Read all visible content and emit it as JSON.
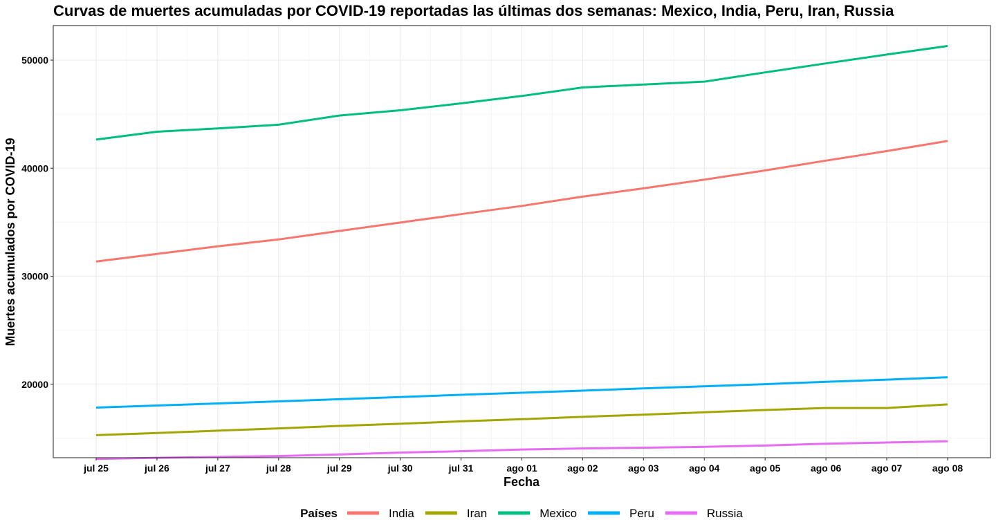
{
  "chart_data": {
    "type": "line",
    "title": "Curvas de muertes acumuladas por COVID-19 reportadas las últimas dos semanas: Mexico, India, Peru, Iran, Russia",
    "xlabel": "Fecha",
    "ylabel": "Muertes acumulados por COVID-19",
    "categories": [
      "jul 25",
      "jul 26",
      "jul 27",
      "jul 28",
      "jul 29",
      "jul 30",
      "jul 31",
      "ago 01",
      "ago 02",
      "ago 03",
      "ago 04",
      "ago 05",
      "ago 06",
      "ago 07",
      "ago 08"
    ],
    "yticks": [
      20000,
      30000,
      40000,
      50000
    ],
    "ylim": [
      13200,
      53200
    ],
    "grid": true,
    "legend": {
      "title": "Países",
      "position": "bottom"
    },
    "series": [
      {
        "name": "India",
        "color": "#F8766D",
        "values": [
          31358,
          32063,
          32771,
          33408,
          34193,
          34968,
          35747,
          36511,
          37364,
          38135,
          38938,
          39795,
          40699,
          41585,
          42518
        ]
      },
      {
        "name": "Iran",
        "color": "#A3A500",
        "values": [
          15289,
          15484,
          15700,
          15912,
          16147,
          16343,
          16569,
          16766,
          16982,
          17190,
          17405,
          17617,
          17802,
          17802,
          18132
        ]
      },
      {
        "name": "Mexico",
        "color": "#00BF7D",
        "values": [
          42645,
          43374,
          43680,
          44022,
          44876,
          45361,
          46000,
          46688,
          47472,
          47746,
          48012,
          48869,
          49698,
          50517,
          51311
        ]
      },
      {
        "name": "Peru",
        "color": "#00B0F6",
        "values": [
          17843,
          18030,
          18227,
          18418,
          18612,
          18816,
          19021,
          19217,
          19408,
          19614,
          19811,
          20007,
          20228,
          20424,
          20649
        ]
      },
      {
        "name": "Russia",
        "color": "#E76BF3",
        "values": [
          13083,
          13192,
          13269,
          13354,
          13504,
          13673,
          13802,
          13963,
          14058,
          14128,
          14207,
          14327,
          14498,
          14606,
          14725
        ]
      }
    ]
  }
}
